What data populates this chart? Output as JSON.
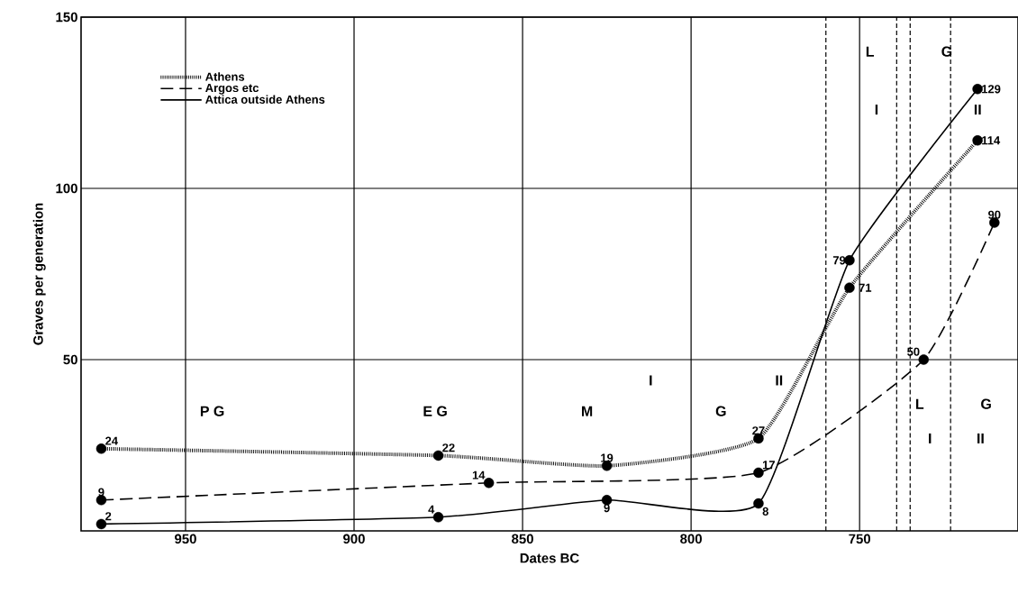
{
  "chart_data": {
    "type": "line",
    "xlabel": "Dates BC",
    "ylabel": "Graves per generation",
    "xlim": [
      981,
      703
    ],
    "ylim": [
      0,
      150
    ],
    "xticks": [
      950,
      900,
      850,
      800,
      750
    ],
    "yticks": [
      50,
      100,
      150
    ],
    "grid": true,
    "legend": "top left",
    "marker": "circle",
    "data_labels": true,
    "series": [
      {
        "name": "Athens",
        "color": "#000000",
        "line_style": "dotted",
        "x": [
          975,
          875,
          825,
          780,
          753,
          715
        ],
        "values": [
          24,
          22,
          19,
          27,
          71,
          114
        ]
      },
      {
        "name": "Argos etc",
        "color": "#000000",
        "line_style": "dashed",
        "x": [
          975,
          860,
          780,
          731,
          710
        ],
        "values": [
          9,
          14,
          17,
          50,
          90
        ]
      },
      {
        "name": "Attica outside Athens",
        "color": "#000000",
        "line_style": "solid",
        "x": [
          975,
          875,
          825,
          780,
          753,
          715
        ],
        "values": [
          2,
          4,
          9,
          8,
          79,
          129
        ]
      }
    ],
    "ref_lines": [
      {
        "axis": "x",
        "value": 760,
        "line_style": "dashed"
      },
      {
        "axis": "x",
        "value": 739,
        "line_style": "dashed"
      },
      {
        "axis": "x",
        "value": 735,
        "line_style": "dashed"
      },
      {
        "axis": "x",
        "value": 723,
        "line_style": "dashed"
      }
    ],
    "annotations": [
      "P G",
      "E G",
      "M",
      "I",
      "G",
      "II",
      "L",
      "G",
      "I",
      "II",
      "L",
      "G",
      "I",
      "II"
    ]
  }
}
